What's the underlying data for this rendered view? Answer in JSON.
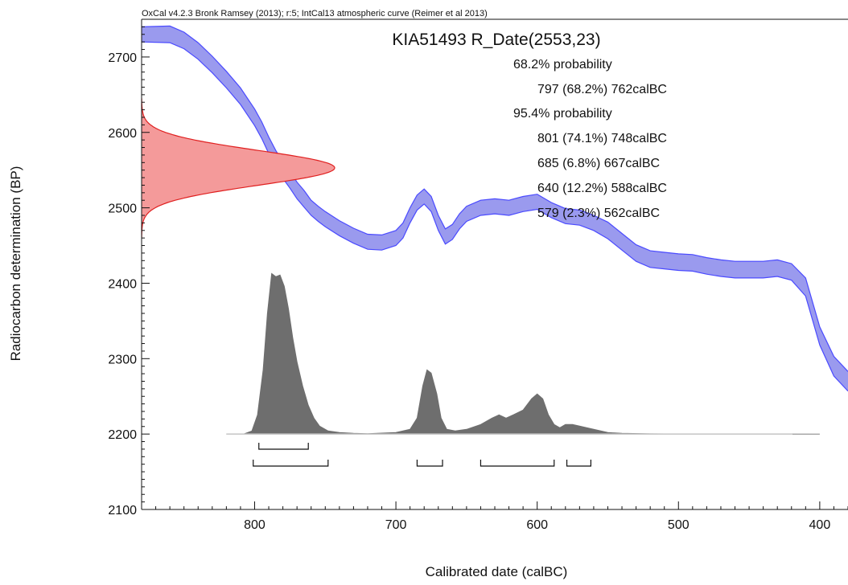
{
  "chart_data": {
    "type": "area",
    "credit": "OxCal v4.2.3 Bronk Ramsey (2013); r:5; IntCal13 atmospheric curve (Reimer et al 2013)",
    "title": "KIA51493 R_Date(2553,23)",
    "xlabel": "Calibrated date (calBC)",
    "ylabel": "Radiocarbon determination (BP)",
    "x_reversed": true,
    "xlim": [
      880,
      380
    ],
    "ylim": [
      2100,
      2750
    ],
    "x_ticks": [
      800,
      700,
      600,
      500,
      400
    ],
    "y_ticks": [
      2100,
      2200,
      2300,
      2400,
      2500,
      2600,
      2700
    ],
    "colors": {
      "calibration_curve": "#4a4aff",
      "calibration_fill": "#9a9aee",
      "radiocarbon_fill": "#f49a9a",
      "radiocarbon_line": "#e02020",
      "posterior_fill": "#6e6e6e"
    },
    "ranges": {
      "p68_label": "68.2% probability",
      "p68": [
        {
          "label": "797 (68.2%) 762calBC",
          "from": 797,
          "to": 762
        }
      ],
      "p95_label": "95.4% probability",
      "p95": [
        {
          "label": "801 (74.1%) 748calBC",
          "from": 801,
          "to": 748
        },
        {
          "label": "685 (6.8%) 667calBC",
          "from": 685,
          "to": 667
        },
        {
          "label": "640 (12.2%) 588calBC",
          "from": 640,
          "to": 588
        },
        {
          "label": "579 (2.3%) 562calBC",
          "from": 579,
          "to": 562
        }
      ]
    },
    "radiocarbon_date": {
      "mean": 2553,
      "sd": 23
    },
    "calibration_curve": {
      "x": [
        880,
        860,
        850,
        840,
        830,
        820,
        810,
        800,
        795,
        790,
        785,
        780,
        775,
        770,
        765,
        760,
        755,
        750,
        740,
        730,
        720,
        710,
        700,
        695,
        690,
        685,
        680,
        675,
        670,
        665,
        660,
        655,
        650,
        640,
        630,
        620,
        610,
        600,
        590,
        580,
        570,
        560,
        550,
        540,
        530,
        520,
        510,
        500,
        490,
        480,
        470,
        460,
        450,
        440,
        430,
        420,
        410,
        400,
        390,
        380
      ],
      "y": [
        2730,
        2730,
        2722,
        2708,
        2690,
        2670,
        2648,
        2620,
        2603,
        2583,
        2565,
        2550,
        2537,
        2523,
        2512,
        2500,
        2492,
        2485,
        2473,
        2463,
        2455,
        2454,
        2460,
        2470,
        2490,
        2507,
        2515,
        2505,
        2480,
        2462,
        2468,
        2482,
        2492,
        2500,
        2502,
        2500,
        2505,
        2508,
        2497,
        2489,
        2487,
        2480,
        2470,
        2455,
        2440,
        2432,
        2430,
        2428,
        2427,
        2423,
        2420,
        2418,
        2418,
        2418,
        2420,
        2415,
        2395,
        2330,
        2290,
        2270
      ],
      "sigma": [
        10,
        11,
        11,
        11,
        11,
        11,
        11,
        11,
        11,
        11,
        11,
        11,
        11,
        11,
        11,
        10,
        10,
        10,
        10,
        10,
        10,
        10,
        10,
        10,
        10,
        10,
        10,
        10,
        10,
        10,
        10,
        10,
        10,
        10,
        10,
        10,
        10,
        10,
        10,
        10,
        10,
        10,
        11,
        11,
        11,
        11,
        11,
        11,
        11,
        11,
        11,
        11,
        11,
        11,
        11,
        11,
        12,
        12,
        13,
        13
      ]
    },
    "posterior": {
      "baseline": 2200,
      "x": [
        820,
        808,
        802,
        798,
        794,
        791,
        788,
        785,
        782,
        779,
        776,
        773,
        770,
        766,
        762,
        758,
        754,
        748,
        740,
        730,
        720,
        700,
        690,
        685,
        681,
        678,
        675,
        671,
        668,
        664,
        658,
        650,
        640,
        632,
        627,
        622,
        617,
        610,
        604,
        600,
        596,
        592,
        588,
        584,
        580,
        575,
        570,
        565,
        560,
        550,
        540,
        520,
        500,
        400
      ],
      "y": [
        0,
        0,
        0.02,
        0.12,
        0.4,
        0.75,
        1.0,
        0.98,
        0.99,
        0.92,
        0.78,
        0.6,
        0.45,
        0.3,
        0.18,
        0.1,
        0.05,
        0.02,
        0.01,
        0.005,
        0.003,
        0.01,
        0.03,
        0.1,
        0.3,
        0.4,
        0.38,
        0.25,
        0.1,
        0.03,
        0.02,
        0.03,
        0.06,
        0.1,
        0.12,
        0.1,
        0.12,
        0.15,
        0.22,
        0.25,
        0.22,
        0.12,
        0.06,
        0.04,
        0.06,
        0.06,
        0.05,
        0.04,
        0.03,
        0.01,
        0.005,
        0.002,
        0.001,
        0
      ]
    }
  }
}
